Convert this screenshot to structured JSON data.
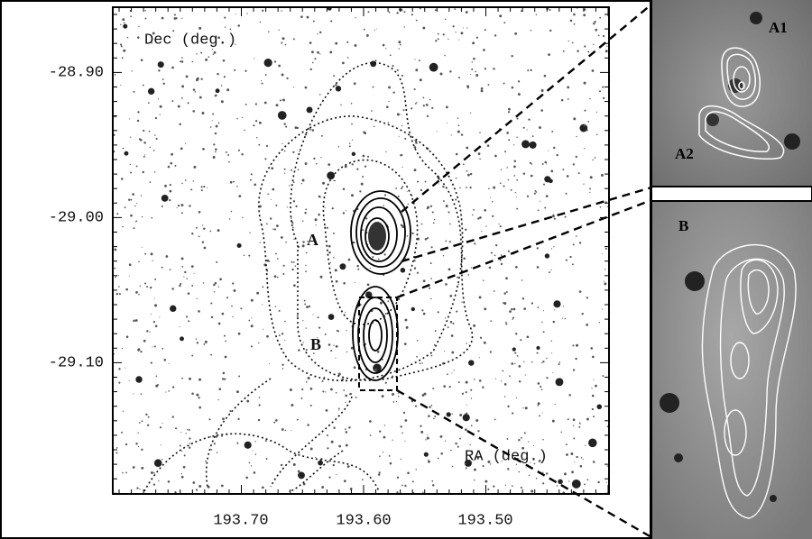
{
  "main_panel": {
    "y_axis_label": "Dec (deg.)",
    "x_axis_label": "RA (deg.)",
    "y_tick_labels": [
      "-28.90",
      "-29.00",
      "-29.10"
    ],
    "x_tick_labels": [
      "193.70",
      "193.60",
      "193.50"
    ],
    "source_labels": [
      "A",
      "B"
    ]
  },
  "insets": [
    {
      "labels": [
        "A1",
        "A2"
      ]
    },
    {
      "labels": [
        "B"
      ]
    }
  ]
}
